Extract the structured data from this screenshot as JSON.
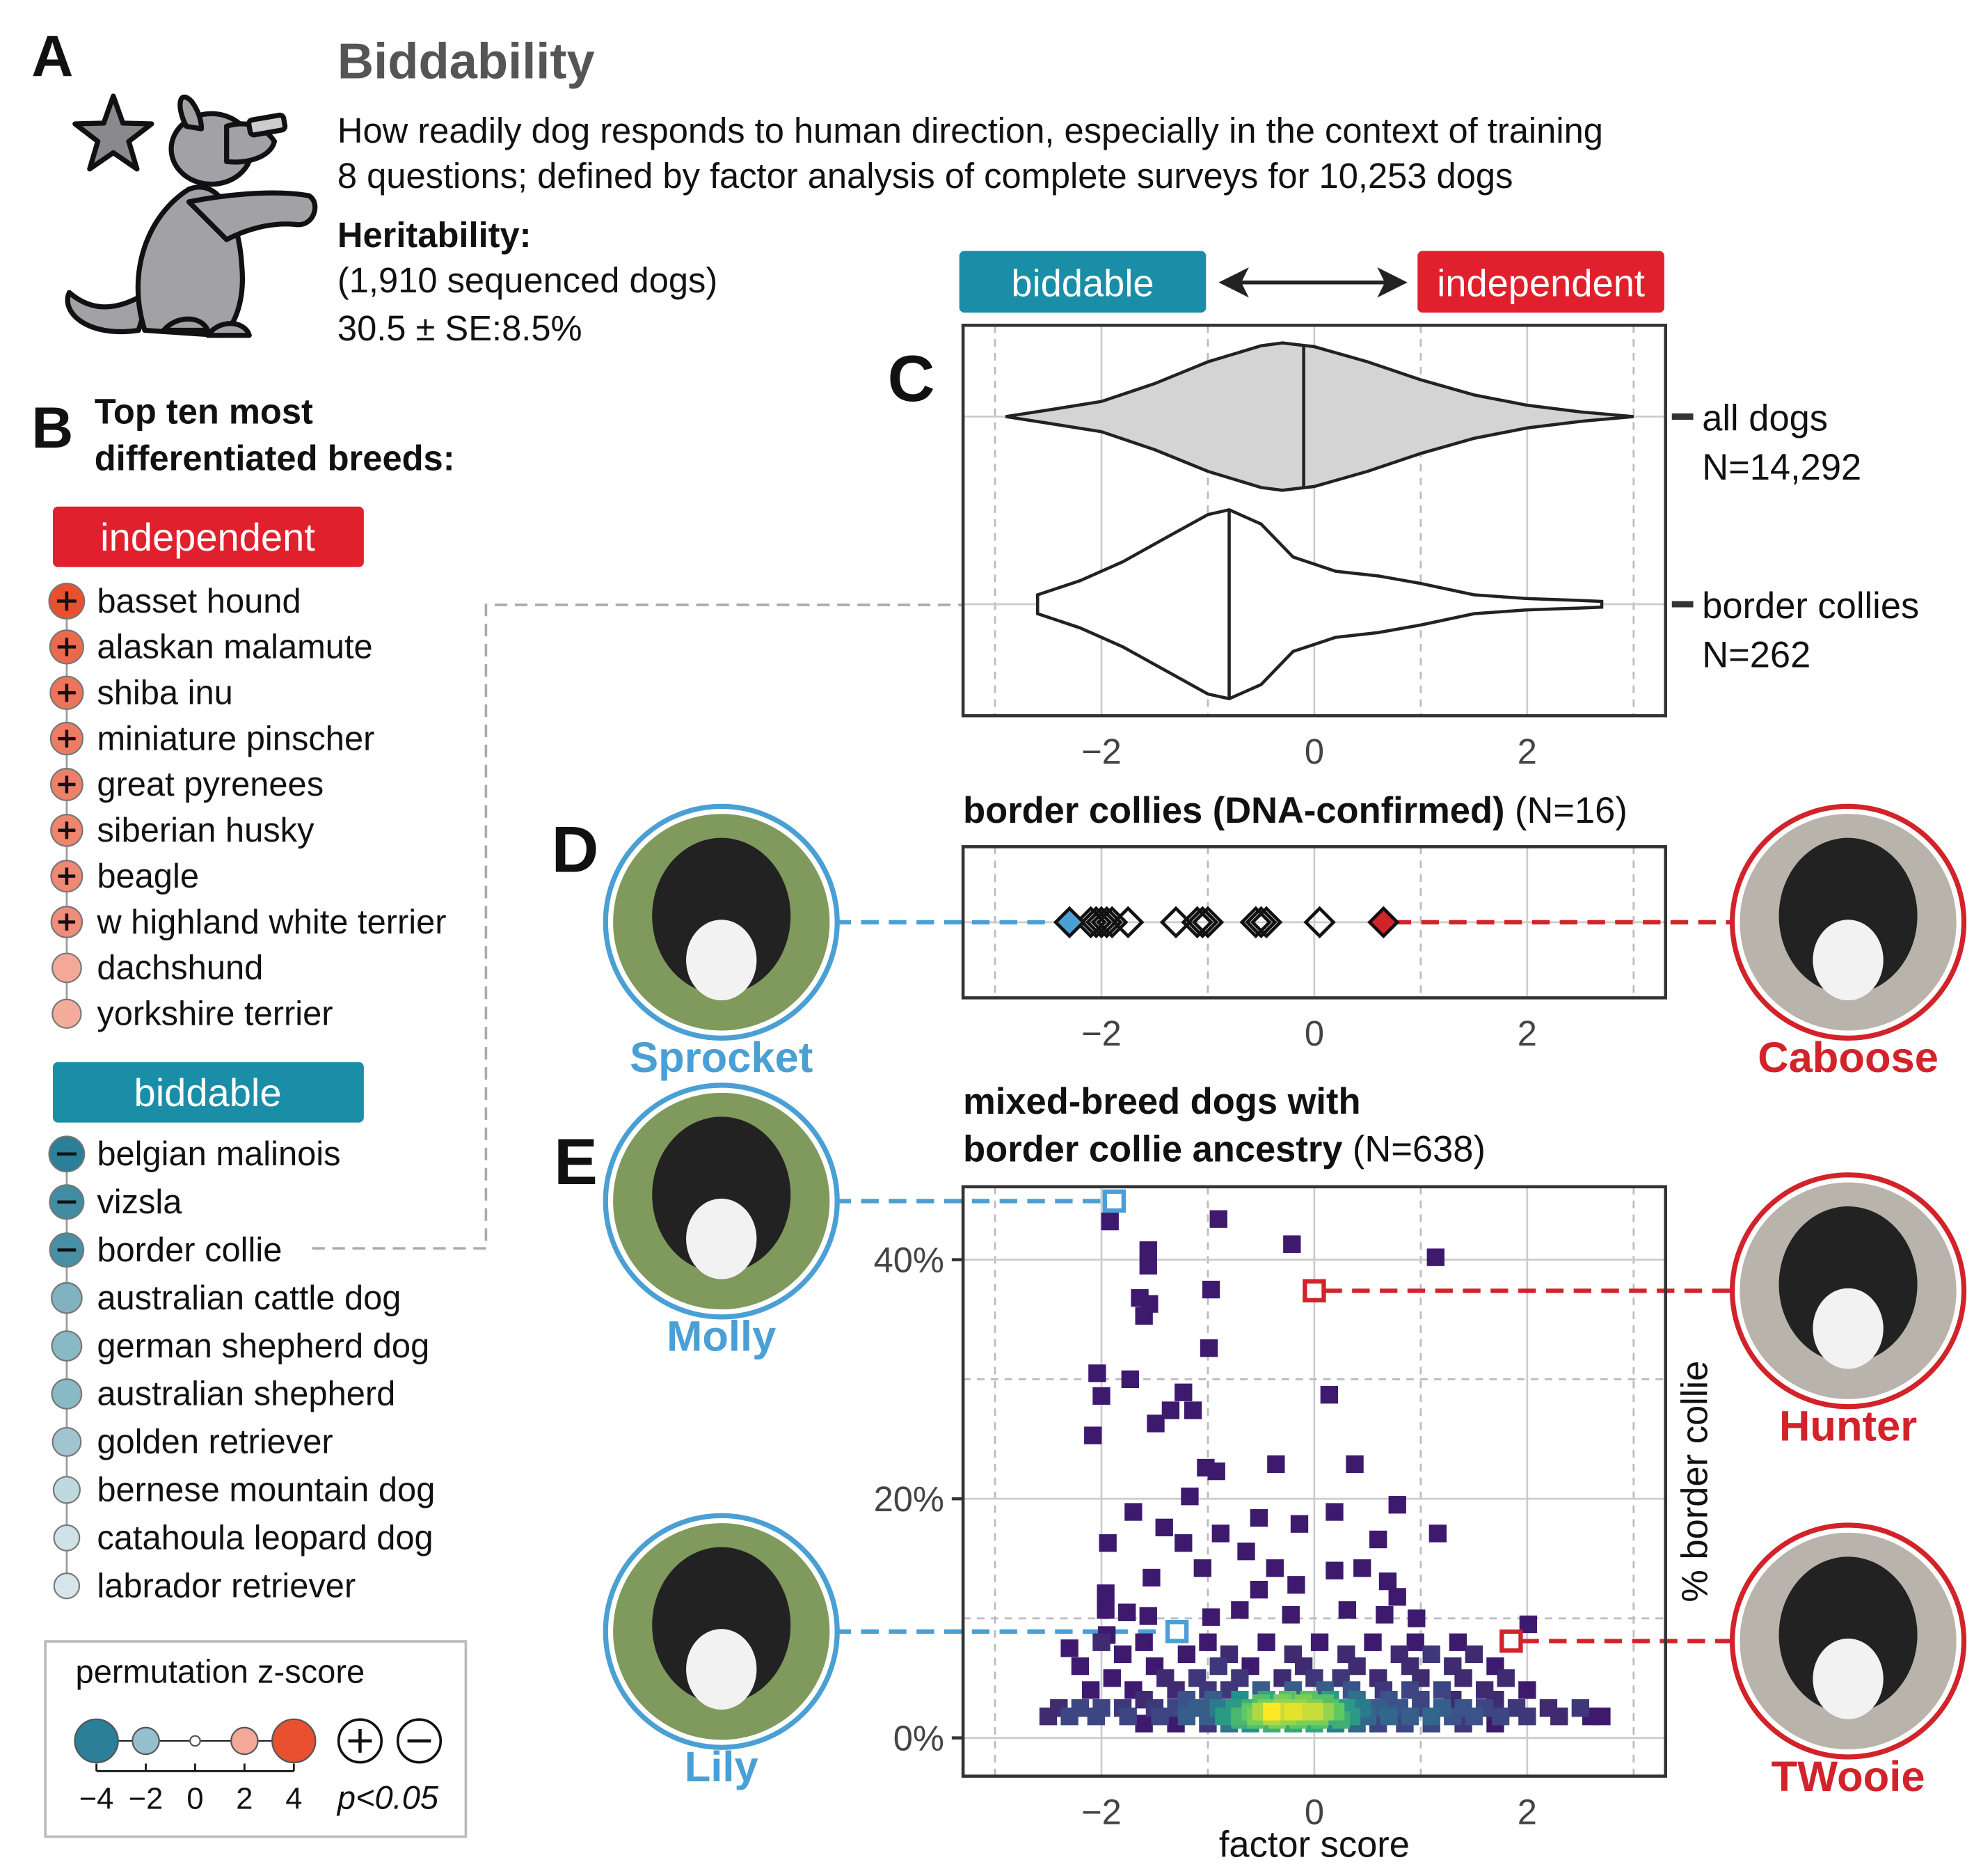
{
  "panel_a": {
    "label": "A",
    "title": "Biddability",
    "description": [
      "How readily dog responds to human direction, especially in the context of training",
      "8 questions; defined by factor analysis of complete surveys for 10,253 dogs"
    ],
    "heritability_label": "Heritability:",
    "heritability_lines": [
      "(1,910 sequenced dogs)",
      "30.5 ± SE:8.5%"
    ]
  },
  "panel_b": {
    "label": "B",
    "title": [
      "Top ten most",
      "differentiated breeds:"
    ],
    "groups": [
      {
        "name": "independent",
        "color": "#e0202c",
        "breeds": [
          {
            "name": "basset hound",
            "z": 4.0,
            "significant": true
          },
          {
            "name": "alaskan malamute",
            "z": 3.4,
            "significant": true
          },
          {
            "name": "shiba inu",
            "z": 3.2,
            "significant": true
          },
          {
            "name": "miniature pinscher",
            "z": 3.0,
            "significant": true
          },
          {
            "name": "great pyrenees",
            "z": 2.9,
            "significant": true
          },
          {
            "name": "siberian husky",
            "z": 2.8,
            "significant": true
          },
          {
            "name": "beagle",
            "z": 2.7,
            "significant": true
          },
          {
            "name": "w highland white terrier",
            "z": 2.6,
            "significant": true
          },
          {
            "name": "dachshund",
            "z": 2.0,
            "significant": false
          },
          {
            "name": "yorkshire terrier",
            "z": 1.9,
            "significant": false
          }
        ]
      },
      {
        "name": "biddable",
        "color": "#1a8ea6",
        "breeds": [
          {
            "name": "belgian malinois",
            "z": -4.0,
            "significant": true
          },
          {
            "name": "vizsla",
            "z": -3.6,
            "significant": true
          },
          {
            "name": "border collie",
            "z": -3.5,
            "significant": true
          },
          {
            "name": "australian cattle dog",
            "z": -2.4,
            "significant": false
          },
          {
            "name": "german shepherd dog",
            "z": -2.2,
            "significant": false
          },
          {
            "name": "australian shepherd",
            "z": -2.2,
            "significant": false
          },
          {
            "name": "golden retriever",
            "z": -1.8,
            "significant": false
          },
          {
            "name": "bernese mountain dog",
            "z": -1.2,
            "significant": false
          },
          {
            "name": "catahoula leopard dog",
            "z": -0.9,
            "significant": false
          },
          {
            "name": "labrador retriever",
            "z": -0.8,
            "significant": false
          }
        ]
      }
    ],
    "legend": {
      "title": "permutation z-score",
      "zlim": [
        -4,
        4
      ],
      "ticks": [
        {
          "value": -4,
          "label": "−4"
        },
        {
          "value": -2,
          "label": "−2"
        },
        0,
        2,
        4
      ],
      "significance_label": "p<0.05",
      "color_low": "#2b7f98",
      "color_mid": "#ffffff",
      "color_high": "#e8502f"
    }
  },
  "chart_data": [
    {
      "type": "violin",
      "label": "C",
      "direction_labels": {
        "low": "biddable",
        "high": "independent",
        "low_color": "#1a8ea6",
        "high_color": "#e0202c"
      },
      "xlim": [
        -3.3,
        3.3
      ],
      "xticks": [
        {
          "value": -2,
          "label": "−2"
        },
        0,
        2
      ],
      "xminor": [
        -3,
        -1,
        1,
        3
      ],
      "grid": true,
      "series": [
        {
          "name": "all dogs",
          "n_label": "N=14,292",
          "color": "#d4d4d4",
          "median": -0.1,
          "x": [
            -2.9,
            -2.5,
            -2.0,
            -1.5,
            -1.0,
            -0.5,
            -0.3,
            0.0,
            0.5,
            1.0,
            1.5,
            2.0,
            2.5,
            3.0
          ],
          "density": [
            0,
            0.07,
            0.16,
            0.35,
            0.58,
            0.75,
            0.78,
            0.74,
            0.58,
            0.39,
            0.23,
            0.12,
            0.05,
            0
          ]
        },
        {
          "name": "border collies",
          "n_label": "N=262",
          "color": "#ffffff",
          "median": -0.8,
          "x": [
            -2.6,
            -2.2,
            -1.8,
            -1.4,
            -1.0,
            -0.8,
            -0.5,
            -0.2,
            0.2,
            0.6,
            1.0,
            1.5,
            2.0,
            2.5,
            2.7
          ],
          "density": [
            0.1,
            0.25,
            0.45,
            0.7,
            0.95,
            1.0,
            0.85,
            0.5,
            0.35,
            0.3,
            0.22,
            0.1,
            0.06,
            0.04,
            0.03
          ]
        }
      ]
    },
    {
      "type": "strip",
      "label": "D",
      "title": "border collies (DNA-confirmed)",
      "subtitle": "(N=16)",
      "xlim": [
        -3.3,
        3.3
      ],
      "xticks": [
        {
          "value": -2,
          "label": "−2"
        },
        0,
        2
      ],
      "xminor": [
        -3,
        -1,
        1,
        3
      ],
      "grid": true,
      "values": [
        -2.1,
        -2.05,
        -2.0,
        -1.95,
        -1.9,
        -1.75,
        -1.3,
        -1.1,
        -1.05,
        -1.0,
        -0.55,
        -0.5,
        -0.45,
        0.05
      ],
      "highlights": [
        {
          "name": "Sprocket",
          "value": -2.3,
          "color": "#4a9fd4",
          "side": "left"
        },
        {
          "name": "Caboose",
          "value": 0.65,
          "color": "#d2232a",
          "side": "right"
        }
      ]
    },
    {
      "type": "scatter",
      "label": "E",
      "title": [
        "mixed-breed dogs with",
        "border collie ancestry"
      ],
      "subtitle": "(N=638)",
      "xlabel": "factor score",
      "ylabel": "% border collie",
      "xlim": [
        -3.3,
        3.3
      ],
      "xticks": [
        {
          "value": -2,
          "label": "−2"
        },
        0,
        2
      ],
      "xminor": [
        -3,
        -1,
        1,
        3
      ],
      "ylim": [
        -3.2,
        46.1
      ],
      "yticks": [
        {
          "value": 0,
          "label": "0%"
        },
        {
          "value": 20,
          "label": "20%"
        },
        {
          "value": 40,
          "label": "40%"
        }
      ],
      "yminor": [
        10,
        30
      ],
      "grid": true,
      "color_scale": "viridis",
      "points": [
        [
          -1.92,
          43.2
        ],
        [
          -0.9,
          43.4
        ],
        [
          -0.21,
          41.3
        ],
        [
          1.14,
          40.2
        ],
        [
          -1.56,
          40.8
        ],
        [
          -1.56,
          39.5
        ],
        [
          -0.97,
          37.5
        ],
        [
          -1.64,
          36.8
        ],
        [
          -1.55,
          36.3
        ],
        [
          -1.6,
          35.3
        ],
        [
          -0.99,
          32.6
        ],
        [
          -2.04,
          30.5
        ],
        [
          -1.73,
          30.0
        ],
        [
          -2.0,
          28.6
        ],
        [
          -1.23,
          28.9
        ],
        [
          0.14,
          28.7
        ],
        [
          -1.35,
          27.4
        ],
        [
          -1.49,
          26.3
        ],
        [
          -1.14,
          27.4
        ],
        [
          -2.08,
          25.3
        ],
        [
          -1.02,
          22.6
        ],
        [
          -0.92,
          22.3
        ],
        [
          -0.36,
          22.9
        ],
        [
          0.38,
          22.9
        ],
        [
          -1.17,
          20.2
        ],
        [
          0.78,
          19.5
        ],
        [
          -1.7,
          18.9
        ],
        [
          -0.52,
          18.4
        ],
        [
          0.19,
          18.9
        ],
        [
          -0.14,
          17.9
        ],
        [
          -1.94,
          16.3
        ],
        [
          -1.41,
          17.6
        ],
        [
          -0.88,
          17.1
        ],
        [
          0.6,
          16.6
        ],
        [
          1.16,
          17.1
        ],
        [
          -1.23,
          16.3
        ],
        [
          -0.64,
          15.6
        ],
        [
          -0.37,
          14.2
        ],
        [
          0.19,
          14.0
        ],
        [
          0.45,
          14.2
        ],
        [
          0.69,
          13.1
        ],
        [
          -1.53,
          13.4
        ],
        [
          -1.05,
          14.2
        ],
        [
          -1.96,
          12.1
        ],
        [
          -0.52,
          12.4
        ],
        [
          -0.17,
          12.8
        ],
        [
          0.78,
          11.8
        ],
        [
          -1.96,
          10.7
        ],
        [
          -1.76,
          10.5
        ],
        [
          -1.56,
          10.2
        ],
        [
          -0.97,
          10.1
        ],
        [
          -0.7,
          10.7
        ],
        [
          -0.22,
          10.3
        ],
        [
          0.31,
          10.7
        ],
        [
          0.66,
          10.3
        ],
        [
          0.96,
          10.0
        ],
        [
          2.01,
          9.5
        ],
        [
          -2.3,
          7.5
        ],
        [
          -1.95,
          8.6
        ],
        [
          -2.0,
          8
        ],
        [
          -1.6,
          8
        ],
        [
          -1.0,
          8
        ],
        [
          -0.45,
          8
        ],
        [
          0.05,
          8
        ],
        [
          0.55,
          8
        ],
        [
          0.95,
          8
        ],
        [
          1.35,
          8
        ],
        [
          -1.8,
          7
        ],
        [
          -1.2,
          7
        ],
        [
          -0.8,
          7
        ],
        [
          -0.2,
          7
        ],
        [
          0.3,
          7
        ],
        [
          0.8,
          7
        ],
        [
          1.1,
          7
        ],
        [
          1.5,
          7
        ],
        [
          -2.2,
          6
        ],
        [
          -1.5,
          6
        ],
        [
          -0.9,
          6
        ],
        [
          -0.6,
          6
        ],
        [
          -0.1,
          6
        ],
        [
          0.4,
          6
        ],
        [
          0.9,
          6
        ],
        [
          1.3,
          6
        ],
        [
          1.7,
          6
        ],
        [
          -1.9,
          5
        ],
        [
          -1.4,
          5
        ],
        [
          -1.1,
          5
        ],
        [
          -0.7,
          5
        ],
        [
          -0.3,
          5
        ],
        [
          0.0,
          5
        ],
        [
          0.25,
          5
        ],
        [
          0.6,
          5
        ],
        [
          1.0,
          5
        ],
        [
          1.4,
          5
        ],
        [
          1.8,
          5
        ],
        [
          -2.1,
          4
        ],
        [
          -1.7,
          4
        ],
        [
          -1.3,
          4
        ],
        [
          -1.0,
          4
        ],
        [
          -0.8,
          4
        ],
        [
          -0.5,
          4
        ],
        [
          -0.2,
          4
        ],
        [
          0.1,
          4
        ],
        [
          0.35,
          4
        ],
        [
          0.65,
          4
        ],
        [
          0.9,
          4
        ],
        [
          1.2,
          4
        ],
        [
          1.6,
          4
        ],
        [
          2.0,
          4
        ],
        [
          -1.6,
          3.2
        ],
        [
          -1.2,
          3.2
        ],
        [
          -0.95,
          3.2
        ],
        [
          -0.7,
          3.2
        ],
        [
          -0.45,
          3.2
        ],
        [
          -0.25,
          3.2
        ],
        [
          -0.05,
          3.2
        ],
        [
          0.15,
          3.2
        ],
        [
          0.4,
          3.2
        ],
        [
          0.7,
          3.2
        ],
        [
          1.0,
          3.2
        ],
        [
          1.3,
          3.2
        ],
        [
          1.7,
          3.2
        ],
        [
          -2.4,
          2.5
        ],
        [
          -2.2,
          2.5
        ],
        [
          -2.0,
          2.5
        ],
        [
          -1.8,
          2.5
        ],
        [
          -1.5,
          2.5
        ],
        [
          -1.3,
          2.5
        ],
        [
          -1.1,
          2.5
        ],
        [
          -0.9,
          2.5
        ],
        [
          -0.75,
          2.5
        ],
        [
          -0.6,
          2.5
        ],
        [
          -0.45,
          2.5
        ],
        [
          -0.3,
          2.5
        ],
        [
          -0.15,
          2.5
        ],
        [
          0,
          2.5
        ],
        [
          0.15,
          2.5
        ],
        [
          0.3,
          2.5
        ],
        [
          0.45,
          2.5
        ],
        [
          0.6,
          2.5
        ],
        [
          0.8,
          2.5
        ],
        [
          1.0,
          2.5
        ],
        [
          1.2,
          2.5
        ],
        [
          1.4,
          2.5
        ],
        [
          1.6,
          2.5
        ],
        [
          1.9,
          2.5
        ],
        [
          2.2,
          2.5
        ],
        [
          2.5,
          2.5
        ],
        [
          -2.5,
          1.8
        ],
        [
          -2.3,
          1.8
        ],
        [
          -2.05,
          1.8
        ],
        [
          -1.75,
          1.8
        ],
        [
          -1.45,
          1.8
        ],
        [
          -1.2,
          1.8
        ],
        [
          -1.0,
          1.8
        ],
        [
          -0.85,
          1.8
        ],
        [
          -0.7,
          1.8
        ],
        [
          -0.55,
          1.8
        ],
        [
          -0.4,
          1.8
        ],
        [
          -0.25,
          1.8
        ],
        [
          -0.1,
          1.8
        ],
        [
          0.05,
          1.8
        ],
        [
          0.2,
          1.8
        ],
        [
          0.35,
          1.8
        ],
        [
          0.5,
          1.8
        ],
        [
          0.7,
          1.8
        ],
        [
          0.9,
          1.8
        ],
        [
          1.1,
          1.8
        ],
        [
          1.3,
          1.8
        ],
        [
          1.5,
          1.8
        ],
        [
          1.75,
          1.8
        ],
        [
          2.0,
          1.8
        ],
        [
          2.3,
          1.8
        ],
        [
          2.6,
          1.8
        ],
        [
          2.7,
          1.8
        ],
        [
          -1.6,
          1.2
        ],
        [
          -1.3,
          1.2
        ],
        [
          -1.0,
          1.2
        ],
        [
          -0.8,
          1.2
        ],
        [
          -0.6,
          1.2
        ],
        [
          -0.4,
          1.2
        ],
        [
          -0.2,
          1.2
        ],
        [
          0,
          1.2
        ],
        [
          0.2,
          1.2
        ],
        [
          0.4,
          1.2
        ],
        [
          0.6,
          1.2
        ],
        [
          0.85,
          1.2
        ],
        [
          1.1,
          1.2
        ],
        [
          1.4,
          1.2
        ],
        [
          1.7,
          1.2
        ],
        [
          -0.6,
          2.2
        ],
        [
          -0.5,
          2.2
        ],
        [
          -0.4,
          2.2
        ],
        [
          -0.3,
          2.2
        ],
        [
          -0.2,
          2.2
        ],
        [
          -0.1,
          2.2
        ],
        [
          0,
          2.2
        ],
        [
          0.1,
          2.2
        ],
        [
          0.2,
          2.2
        ],
        [
          -0.7,
          1.5
        ],
        [
          -0.55,
          1.5
        ],
        [
          -0.35,
          1.5
        ],
        [
          -0.15,
          1.5
        ],
        [
          0.05,
          1.5
        ],
        [
          0.25,
          1.5
        ],
        [
          -0.5,
          2.9
        ],
        [
          -0.3,
          2.9
        ],
        [
          -0.1,
          2.9
        ],
        [
          0.1,
          2.9
        ]
      ],
      "highlights": [
        {
          "name": "Molly",
          "x": -1.88,
          "y": 44.9,
          "color": "#4a9fd4",
          "side": "left"
        },
        {
          "name": "Hunter",
          "x": 0.0,
          "y": 37.4,
          "color": "#d2232a",
          "side": "right"
        },
        {
          "name": "Lily",
          "x": -1.29,
          "y": 8.9,
          "color": "#4a9fd4",
          "side": "left"
        },
        {
          "name": "TWooie",
          "x": 1.85,
          "y": 8.1,
          "color": "#d2232a",
          "side": "right"
        }
      ]
    }
  ]
}
